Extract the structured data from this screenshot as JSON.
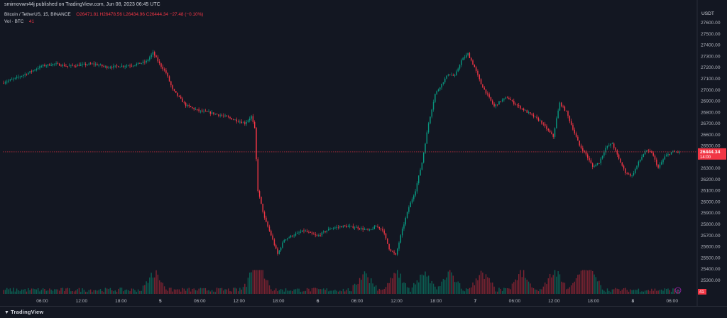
{
  "header": {
    "published_line": "smirnovwn44j published on TradingView.com, Jun 08, 2023 06:45 UTC"
  },
  "legend": {
    "symbol_line": "Bitcoin / TetherUS, 15, BINANCE",
    "open": "O26471.81",
    "high": "H26478.56",
    "low": "L26434.96",
    "close": "C26444.34",
    "change": "−27.48 (−0.10%)",
    "vol_label": "Vol · BTC",
    "vol_value": "41"
  },
  "price_axis": {
    "currency": "USDT",
    "current_price": "26444.34",
    "countdown": "14:00",
    "volume_badge": "41"
  },
  "footer": {
    "brand": "TradingView"
  },
  "colors": {
    "background": "#131722",
    "up": "#089981",
    "down": "#f23645",
    "up_volume": "#0c5e52",
    "down_volume": "#7b2331",
    "price_line": "#f23645"
  },
  "chart_data": {
    "type": "candlestick",
    "symbol": "Bitcoin / TetherUS",
    "interval": "15",
    "exchange": "BINANCE",
    "ylim": [
      25150,
      27750
    ],
    "y_ticks": [
      25300,
      25400,
      25500,
      25600,
      25700,
      25800,
      25900,
      26000,
      26100,
      26200,
      26300,
      26400,
      26500,
      26600,
      26700,
      26800,
      26900,
      27000,
      27100,
      27200,
      27300,
      27400,
      27500,
      27600
    ],
    "x_ticks": [
      "06:00",
      "12:00",
      "18:00",
      "5",
      "06:00",
      "12:00",
      "18:00",
      "6",
      "06:00",
      "12:00",
      "18:00",
      "7",
      "06:00",
      "12:00",
      "18:00",
      "8",
      "06:00"
    ],
    "x_tick_hours": [
      6,
      12,
      18,
      24,
      30,
      36,
      42,
      48,
      54,
      60,
      66,
      72,
      78,
      84,
      90,
      96,
      102
    ],
    "start_hour": 0,
    "end_hour": 103,
    "path_hours": [
      0,
      2,
      4,
      6,
      8,
      10,
      12,
      14,
      16,
      18,
      20,
      22,
      23,
      24,
      25,
      26,
      28,
      30,
      32,
      34,
      35,
      36,
      37,
      38,
      38.5,
      39,
      40,
      41,
      42,
      43,
      44,
      46,
      48,
      50,
      52,
      54,
      56,
      57,
      58,
      59,
      60,
      61,
      62,
      63,
      64,
      65,
      66,
      67,
      68,
      69,
      70,
      71,
      72,
      73,
      74,
      75,
      76,
      77,
      78,
      80,
      82,
      84,
      84.5,
      85,
      86,
      87,
      88,
      89,
      90,
      91,
      92,
      93,
      94,
      95,
      96,
      97,
      98,
      99,
      100,
      101,
      102,
      103
    ],
    "path_prices": [
      27060,
      27100,
      27150,
      27210,
      27230,
      27210,
      27220,
      27230,
      27200,
      27210,
      27220,
      27250,
      27330,
      27230,
      27150,
      27000,
      26860,
      26810,
      26790,
      26760,
      26740,
      26720,
      26700,
      26760,
      26650,
      26100,
      25850,
      25700,
      25530,
      25660,
      25690,
      25740,
      25690,
      25760,
      25780,
      25770,
      25740,
      25780,
      25750,
      25580,
      25520,
      25750,
      25950,
      26100,
      26350,
      26700,
      26960,
      27050,
      27140,
      27120,
      27260,
      27320,
      27200,
      27050,
      26950,
      26850,
      26900,
      26930,
      26880,
      26800,
      26720,
      26580,
      26740,
      26880,
      26800,
      26650,
      26500,
      26420,
      26310,
      26350,
      26480,
      26520,
      26380,
      26260,
      26230,
      26350,
      26450,
      26440,
      26300,
      26400,
      26440,
      26444.34
    ],
    "last_price": 26444.34,
    "volume_spike_hours": [
      23,
      38.2,
      39,
      55,
      60,
      64,
      68,
      73,
      79,
      84,
      88,
      89.5
    ],
    "volume_unit": "BTC",
    "last_volume": 41
  }
}
